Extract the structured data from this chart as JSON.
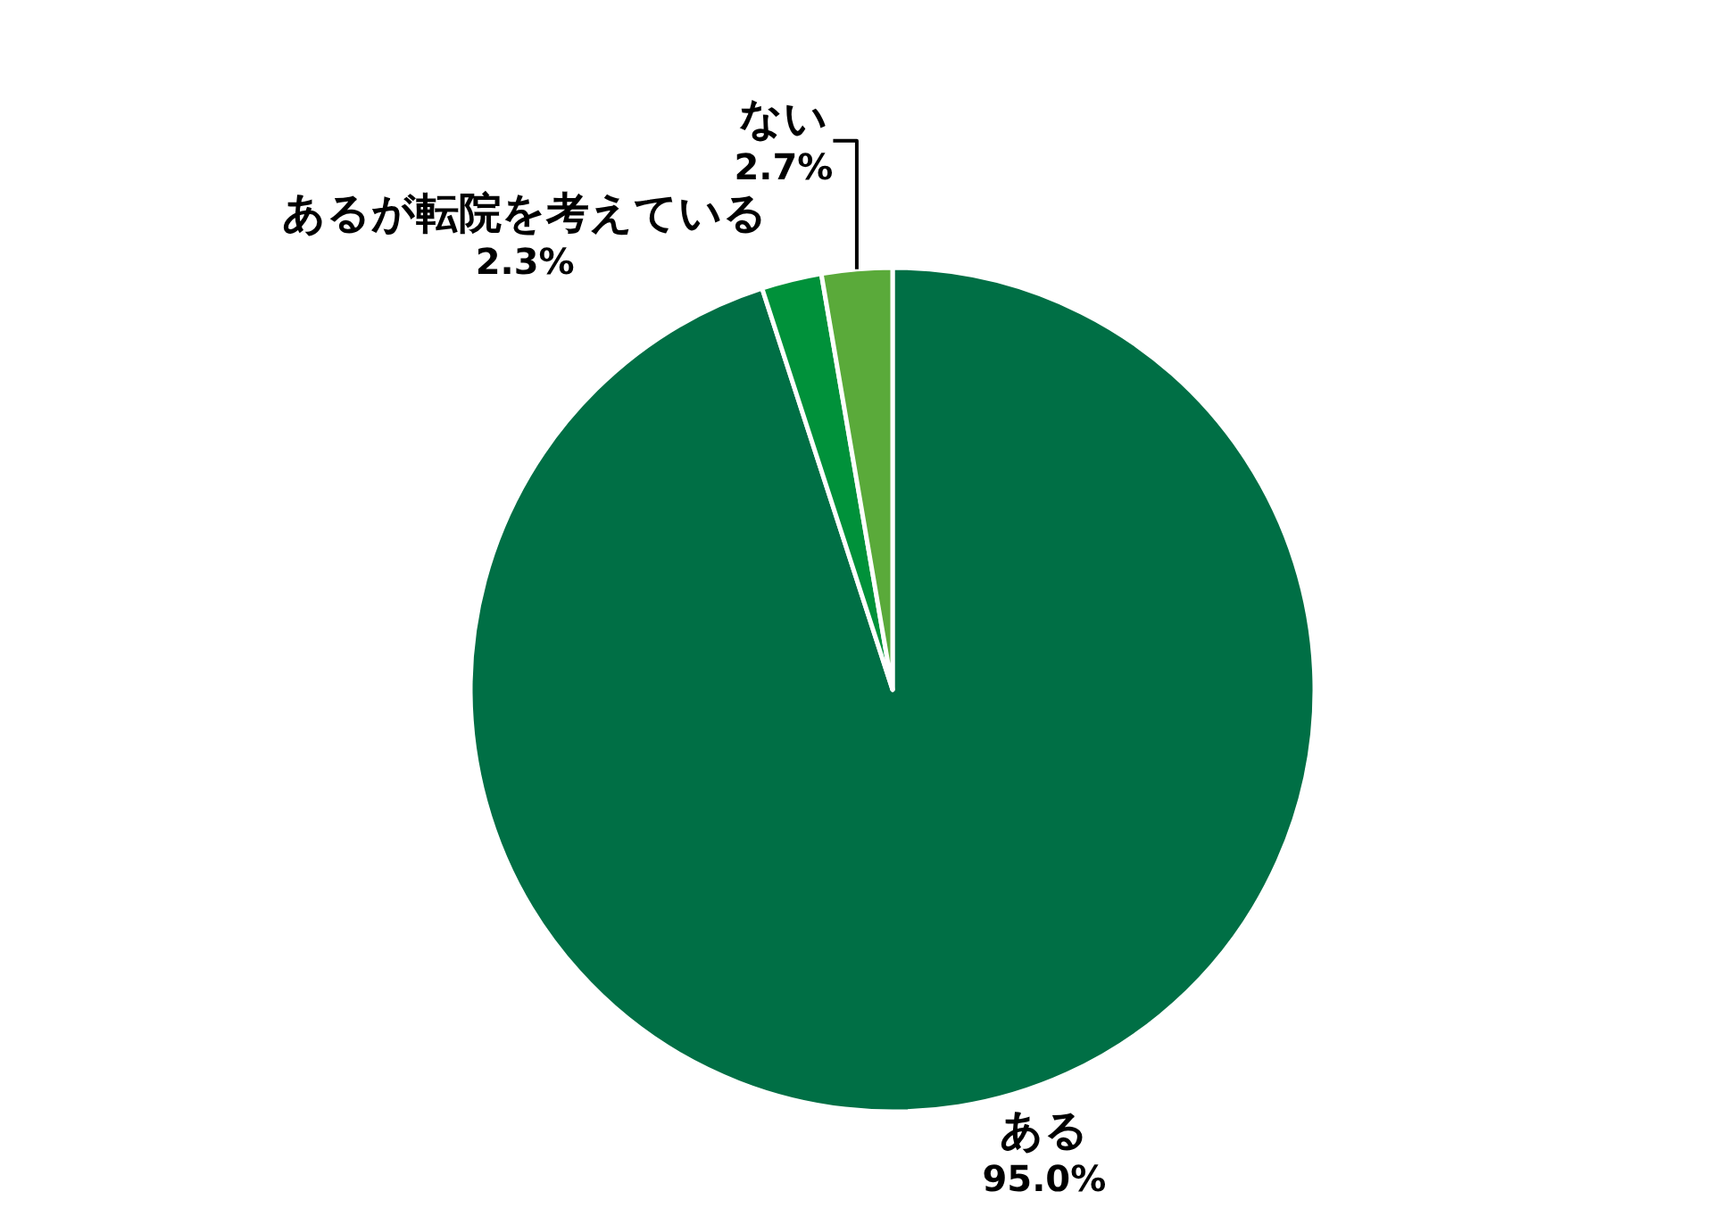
{
  "chart_data": {
    "type": "pie",
    "categories": [
      "ある",
      "あるが転院を考えている",
      "ない"
    ],
    "values": [
      95.0,
      2.3,
      2.7
    ],
    "value_labels": [
      "95.0%",
      "2.3%",
      "2.7%"
    ],
    "colors": [
      "#006f45",
      "#00913a",
      "#5aaa3a"
    ],
    "legend": false
  }
}
